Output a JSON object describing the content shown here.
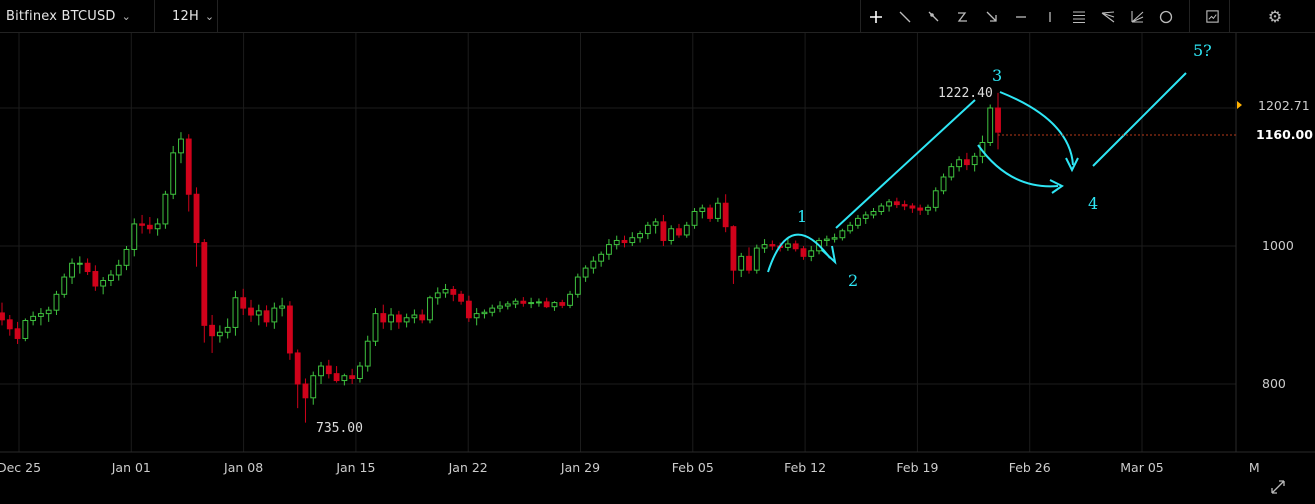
{
  "toolbar": {
    "symbol": "Bitfinex BTCUSD",
    "interval": "12H",
    "tools": [
      "crosshair-icon",
      "trend-line-icon",
      "ray-icon",
      "curve-icon",
      "arrow-icon",
      "horizontal-line-icon",
      "vertical-line-icon",
      "fib-retracement-icon",
      "pitchfork-icon",
      "fan-icon",
      "circle-icon"
    ],
    "snapshot_icon": "snapshot-icon",
    "settings_icon": "gear-icon"
  },
  "colors": {
    "up": "#3fc23f",
    "down": "#d0021b",
    "annotation": "#2ee6f5",
    "grid": "#1c1c1c",
    "last_price": "#ffb000"
  },
  "chart_data": {
    "type": "candlestick",
    "title": "",
    "xlabel": "",
    "ylabel": "",
    "ylim": [
      700,
      1285
    ],
    "y_ticks": [
      800,
      1000
    ],
    "x_ticks": [
      "Dec 25",
      "Jan 01",
      "Jan 08",
      "Jan 15",
      "Jan 22",
      "Jan 29",
      "Feb 05",
      "Feb 12",
      "Feb 19",
      "Feb 26",
      "Mar 05",
      "M"
    ],
    "price_labels": {
      "current": "1160.00",
      "last": "1202.71",
      "high_marker": "1222.40",
      "low_marker": "735.00"
    },
    "annotations": [
      "1",
      "2",
      "3",
      "4",
      "5?"
    ],
    "series": [
      {
        "values": [
          [
            903,
            918,
            885,
            893
          ],
          [
            893,
            900,
            870,
            880
          ],
          [
            880,
            890,
            858,
            866
          ],
          [
            866,
            895,
            862,
            892
          ],
          [
            892,
            905,
            885,
            898
          ],
          [
            898,
            910,
            885,
            902
          ],
          [
            902,
            912,
            890,
            907
          ],
          [
            907,
            935,
            900,
            930
          ],
          [
            930,
            960,
            925,
            955
          ],
          [
            955,
            982,
            945,
            975
          ],
          [
            975,
            985,
            960,
            975
          ],
          [
            975,
            982,
            958,
            963
          ],
          [
            963,
            972,
            935,
            942
          ],
          [
            942,
            955,
            930,
            950
          ],
          [
            950,
            965,
            942,
            958
          ],
          [
            958,
            980,
            950,
            972
          ],
          [
            972,
            1000,
            965,
            995
          ],
          [
            995,
            1040,
            985,
            1032
          ],
          [
            1032,
            1045,
            1018,
            1030
          ],
          [
            1030,
            1042,
            1018,
            1025
          ],
          [
            1025,
            1040,
            1015,
            1032
          ],
          [
            1032,
            1080,
            1025,
            1075
          ],
          [
            1075,
            1145,
            1068,
            1135
          ],
          [
            1135,
            1165,
            1120,
            1155
          ],
          [
            1155,
            1162,
            1050,
            1075
          ],
          [
            1075,
            1085,
            970,
            1005
          ],
          [
            1005,
            1010,
            860,
            885
          ],
          [
            885,
            900,
            845,
            870
          ],
          [
            870,
            885,
            860,
            875
          ],
          [
            875,
            895,
            866,
            882
          ],
          [
            882,
            935,
            870,
            925
          ],
          [
            925,
            938,
            900,
            910
          ],
          [
            910,
            922,
            890,
            900
          ],
          [
            900,
            915,
            885,
            906
          ],
          [
            906,
            914,
            883,
            890
          ],
          [
            890,
            918,
            880,
            910
          ],
          [
            910,
            925,
            898,
            913
          ],
          [
            913,
            920,
            835,
            845
          ],
          [
            845,
            850,
            765,
            800
          ],
          [
            800,
            808,
            744,
            780
          ],
          [
            780,
            818,
            770,
            812
          ],
          [
            812,
            832,
            800,
            826
          ],
          [
            826,
            835,
            808,
            815
          ],
          [
            815,
            826,
            802,
            805
          ],
          [
            805,
            815,
            798,
            812
          ],
          [
            812,
            822,
            800,
            808
          ],
          [
            808,
            832,
            802,
            826
          ],
          [
            826,
            870,
            818,
            862
          ],
          [
            862,
            910,
            855,
            902
          ],
          [
            902,
            915,
            880,
            890
          ],
          [
            890,
            910,
            878,
            900
          ],
          [
            900,
            906,
            880,
            890
          ],
          [
            890,
            902,
            882,
            896
          ],
          [
            896,
            908,
            888,
            900
          ],
          [
            900,
            908,
            888,
            893
          ],
          [
            893,
            928,
            888,
            925
          ],
          [
            925,
            940,
            915,
            932
          ],
          [
            932,
            945,
            925,
            937
          ],
          [
            937,
            942,
            920,
            930
          ],
          [
            930,
            935,
            915,
            920
          ],
          [
            920,
            928,
            890,
            896
          ],
          [
            896,
            910,
            885,
            902
          ],
          [
            902,
            908,
            895,
            904
          ],
          [
            904,
            915,
            898,
            910
          ],
          [
            910,
            920,
            904,
            913
          ],
          [
            913,
            920,
            908,
            916
          ],
          [
            916,
            924,
            910,
            920
          ],
          [
            920,
            926,
            912,
            917
          ],
          [
            917,
            925,
            910,
            918
          ],
          [
            918,
            924,
            912,
            919
          ],
          [
            919,
            925,
            910,
            912
          ],
          [
            912,
            920,
            906,
            918
          ],
          [
            918,
            922,
            910,
            914
          ],
          [
            914,
            935,
            910,
            930
          ],
          [
            930,
            960,
            925,
            955
          ],
          [
            955,
            972,
            948,
            968
          ],
          [
            968,
            985,
            960,
            978
          ],
          [
            978,
            992,
            970,
            988
          ],
          [
            988,
            1010,
            980,
            1002
          ],
          [
            1002,
            1015,
            995,
            1008
          ],
          [
            1008,
            1015,
            998,
            1005
          ],
          [
            1005,
            1020,
            1000,
            1012
          ],
          [
            1012,
            1022,
            1005,
            1018
          ],
          [
            1018,
            1035,
            1010,
            1030
          ],
          [
            1030,
            1040,
            1018,
            1035
          ],
          [
            1035,
            1045,
            1000,
            1008
          ],
          [
            1008,
            1030,
            1002,
            1025
          ],
          [
            1025,
            1032,
            1012,
            1016
          ],
          [
            1016,
            1035,
            1012,
            1030
          ],
          [
            1030,
            1055,
            1025,
            1050
          ],
          [
            1050,
            1060,
            1040,
            1055
          ],
          [
            1055,
            1060,
            1035,
            1040
          ],
          [
            1040,
            1070,
            1035,
            1062
          ],
          [
            1062,
            1075,
            1020,
            1028
          ],
          [
            1028,
            1030,
            945,
            965
          ],
          [
            965,
            990,
            955,
            985
          ],
          [
            985,
            998,
            960,
            965
          ],
          [
            965,
            1002,
            960,
            997
          ],
          [
            997,
            1010,
            990,
            1002
          ],
          [
            1002,
            1008,
            994,
            1000
          ],
          [
            1000,
            1005,
            992,
            998
          ],
          [
            998,
            1010,
            993,
            1003
          ],
          [
            1003,
            1008,
            992,
            996
          ],
          [
            996,
            1000,
            980,
            985
          ],
          [
            985,
            1000,
            978,
            993
          ],
          [
            993,
            1012,
            988,
            1008
          ],
          [
            1008,
            1015,
            1000,
            1010
          ],
          [
            1010,
            1018,
            1005,
            1012
          ],
          [
            1012,
            1025,
            1008,
            1022
          ],
          [
            1022,
            1035,
            1018,
            1030
          ],
          [
            1030,
            1045,
            1025,
            1040
          ],
          [
            1040,
            1050,
            1032,
            1045
          ],
          [
            1045,
            1055,
            1040,
            1050
          ],
          [
            1050,
            1062,
            1045,
            1058
          ],
          [
            1058,
            1068,
            1050,
            1064
          ],
          [
            1064,
            1070,
            1055,
            1060
          ],
          [
            1060,
            1066,
            1052,
            1058
          ],
          [
            1058,
            1062,
            1048,
            1055
          ],
          [
            1055,
            1060,
            1045,
            1052
          ],
          [
            1052,
            1060,
            1045,
            1056
          ],
          [
            1056,
            1085,
            1050,
            1080
          ],
          [
            1080,
            1105,
            1075,
            1100
          ],
          [
            1100,
            1120,
            1095,
            1115
          ],
          [
            1115,
            1130,
            1108,
            1125
          ],
          [
            1125,
            1135,
            1110,
            1118
          ],
          [
            1118,
            1135,
            1108,
            1130
          ],
          [
            1130,
            1160,
            1120,
            1150
          ],
          [
            1150,
            1205,
            1145,
            1200
          ],
          [
            1200,
            1222,
            1140,
            1165
          ]
        ]
      }
    ]
  }
}
